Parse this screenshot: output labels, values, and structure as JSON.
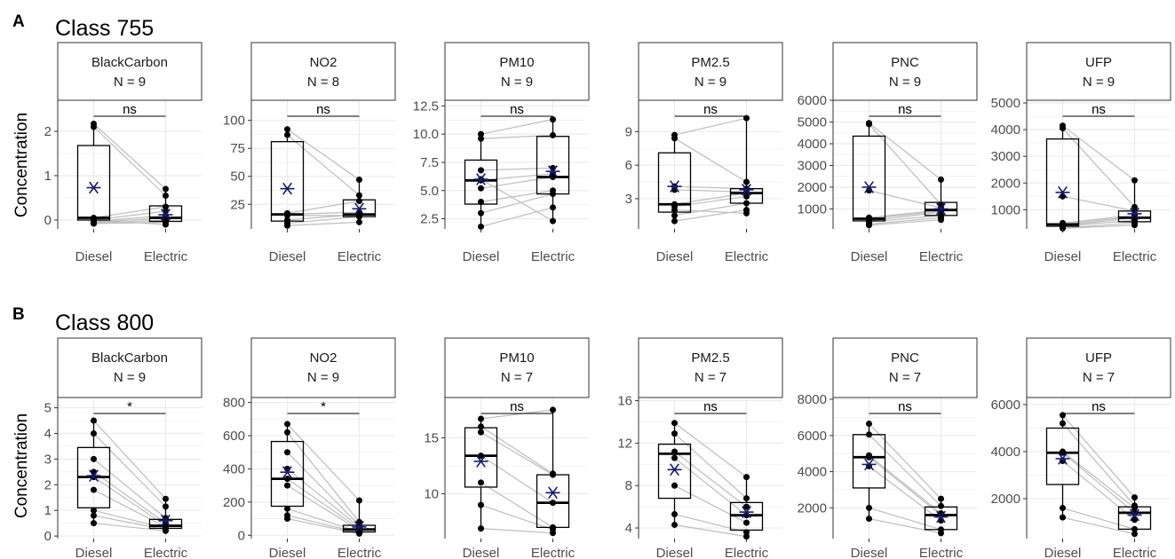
{
  "figure": {
    "y_axis_label": "Concentration",
    "mean_marker_color": "#191970",
    "point_color": "#000000",
    "paired_line_color": "#bdbdbd"
  },
  "chart_data": [
    {
      "tag": "A",
      "title": "Class 755",
      "type": "box-paired",
      "categories": [
        "Diesel",
        "Electric"
      ],
      "ylabel": "Concentration",
      "panels": [
        {
          "pollutant": "BlackCarbon",
          "n_label": "N = 9",
          "sig": "ns",
          "ylim": [
            -0.2,
            2.7
          ],
          "yticks": [
            0,
            1,
            2
          ],
          "diesel": {
            "q1": 0.0,
            "median": 0.05,
            "q3": 1.68,
            "whisker_low": -0.08,
            "whisker_high": 2.17,
            "mean": 0.73,
            "points": [
              2.17,
              2.1,
              0.05,
              0.0,
              -0.03,
              -0.05,
              -0.07,
              -0.08,
              0.0
            ]
          },
          "electric": {
            "q1": -0.03,
            "median": 0.05,
            "q3": 0.32,
            "whisker_low": -0.1,
            "whisker_high": 0.7,
            "mean": 0.12,
            "points": [
              0.7,
              0.55,
              0.3,
              0.2,
              0.1,
              0.05,
              0.0,
              -0.05,
              -0.1
            ]
          }
        },
        {
          "pollutant": "NO2",
          "n_label": "N = 8",
          "sig": "ns",
          "ylim": [
            3,
            118
          ],
          "yticks": [
            25,
            50,
            75,
            100
          ],
          "diesel": {
            "q1": 10,
            "median": 16,
            "q3": 81,
            "whisker_low": 6,
            "whisker_high": 92,
            "mean": 39,
            "points": [
              92,
              87,
              17,
              16,
              11,
              8,
              6,
              15
            ]
          },
          "electric": {
            "q1": 14,
            "median": 16,
            "q3": 29,
            "whisker_low": 9,
            "whisker_high": 47,
            "mean": 21,
            "points": [
              47,
              33,
              28,
              18,
              16,
              14,
              9,
              15
            ]
          }
        },
        {
          "pollutant": "PM10",
          "n_label": "N = 9",
          "sig": "ns",
          "ylim": [
            1.6,
            13.0
          ],
          "yticks": [
            2.5,
            5.0,
            7.5,
            10.0,
            12.5
          ],
          "diesel": {
            "q1": 3.8,
            "median": 5.9,
            "q3": 7.7,
            "whisker_low": 1.8,
            "whisker_high": 10.0,
            "mean": 6.0,
            "points": [
              10.0,
              9.6,
              6.8,
              5.9,
              5.2,
              4.0,
              3.0,
              1.8,
              6.0
            ]
          },
          "electric": {
            "q1": 4.7,
            "median": 6.2,
            "q3": 9.8,
            "whisker_low": 2.3,
            "whisker_high": 11.3,
            "mean": 6.7,
            "points": [
              11.3,
              9.9,
              7.0,
              6.5,
              6.2,
              5.0,
              4.7,
              3.5,
              2.3
            ]
          }
        },
        {
          "pollutant": "PM2.5",
          "n_label": "N = 9",
          "sig": "ns",
          "ylim": [
            0.3,
            11.8
          ],
          "yticks": [
            3,
            6,
            9
          ],
          "diesel": {
            "q1": 1.8,
            "median": 2.5,
            "q3": 7.1,
            "whisker_low": 1.0,
            "whisker_high": 8.7,
            "mean": 4.1,
            "points": [
              8.7,
              8.4,
              4.1,
              3.8,
              2.5,
              2.3,
              1.5,
              1.0,
              2.0
            ]
          },
          "electric": {
            "q1": 2.6,
            "median": 3.5,
            "q3": 3.9,
            "whisker_low": 1.7,
            "whisker_high": 10.2,
            "mean": 3.8,
            "points": [
              10.2,
              4.5,
              3.9,
              3.6,
              3.5,
              3.2,
              2.6,
              2.0,
              1.7
            ]
          }
        },
        {
          "pollutant": "PNC",
          "n_label": "N = 9",
          "sig": "ns",
          "ylim": [
            80,
            6000
          ],
          "yticks": [
            1000,
            2000,
            3000,
            4000,
            5000,
            6000
          ],
          "diesel": {
            "q1": 450,
            "median": 550,
            "q3": 4350,
            "whisker_low": 250,
            "whisker_high": 4950,
            "mean": 2000,
            "points": [
              4950,
              4900,
              1850,
              600,
              550,
              450,
              400,
              300,
              250
            ]
          },
          "electric": {
            "q1": 700,
            "median": 950,
            "q3": 1300,
            "whisker_low": 500,
            "whisker_high": 2350,
            "mean": 1000,
            "points": [
              2350,
              1200,
              1050,
              950,
              900,
              850,
              700,
              600,
              500
            ]
          }
        },
        {
          "pollutant": "UFP",
          "n_label": "N = 9",
          "sig": "ns",
          "ylim": [
            280,
            5100
          ],
          "yticks": [
            1000,
            2000,
            3000,
            4000,
            5000
          ],
          "diesel": {
            "q1": 380,
            "median": 450,
            "q3": 3650,
            "whisker_low": 300,
            "whisker_high": 4150,
            "mean": 1650,
            "points": [
              4150,
              4050,
              1500,
              500,
              450,
              400,
              380,
              320,
              300
            ]
          },
          "electric": {
            "q1": 550,
            "median": 700,
            "q3": 950,
            "whisker_low": 420,
            "whisker_high": 2100,
            "mean": 850,
            "points": [
              2100,
              1100,
              950,
              800,
              750,
              700,
              600,
              500,
              420
            ]
          }
        }
      ]
    },
    {
      "tag": "B",
      "title": "Class 800",
      "type": "box-paired",
      "categories": [
        "Diesel",
        "Electric"
      ],
      "ylabel": "Concentration",
      "panels": [
        {
          "pollutant": "BlackCarbon",
          "n_label": "N = 9",
          "sig": "*",
          "ylim": [
            -0.1,
            5.4
          ],
          "yticks": [
            0,
            1,
            2,
            3,
            4,
            5
          ],
          "diesel": {
            "q1": 1.1,
            "median": 2.3,
            "q3": 3.45,
            "whisker_low": 0.5,
            "whisker_high": 4.5,
            "mean": 2.35,
            "points": [
              4.5,
              4.0,
              3.0,
              2.5,
              2.3,
              1.8,
              1.0,
              0.8,
              0.5
            ]
          },
          "electric": {
            "q1": 0.3,
            "median": 0.4,
            "q3": 0.65,
            "whisker_low": 0.2,
            "whisker_high": 1.45,
            "mean": 0.6,
            "points": [
              1.45,
              1.15,
              0.7,
              0.5,
              0.4,
              0.35,
              0.3,
              0.25,
              0.2
            ]
          }
        },
        {
          "pollutant": "NO2",
          "n_label": "N = 9",
          "sig": "*",
          "ylim": [
            -20,
            830
          ],
          "yticks": [
            0,
            200,
            400,
            600,
            800
          ],
          "diesel": {
            "q1": 175,
            "median": 340,
            "q3": 565,
            "whisker_low": 100,
            "whisker_high": 670,
            "mean": 380,
            "points": [
              670,
              620,
              500,
              400,
              340,
              300,
              160,
              120,
              100
            ]
          },
          "electric": {
            "q1": 20,
            "median": 35,
            "q3": 60,
            "whisker_low": 10,
            "whisker_high": 210,
            "mean": 50,
            "points": [
              210,
              80,
              60,
              50,
              40,
              30,
              20,
              15,
              10
            ]
          }
        },
        {
          "pollutant": "PM10",
          "n_label": "N = 7",
          "sig": "ns",
          "ylim": [
            6.0,
            18.6
          ],
          "yticks": [
            10,
            15
          ],
          "diesel": {
            "q1": 10.6,
            "median": 13.4,
            "q3": 15.9,
            "whisker_low": 6.9,
            "whisker_high": 16.7,
            "mean": 12.9,
            "points": [
              16.7,
              16.0,
              15.5,
              13.4,
              11.0,
              9.0,
              6.9
            ]
          },
          "electric": {
            "q1": 7.0,
            "median": 9.2,
            "q3": 11.7,
            "whisker_low": 6.5,
            "whisker_high": 17.5,
            "mean": 10.1,
            "points": [
              17.5,
              11.8,
              11.7,
              9.2,
              7.0,
              6.8,
              6.5
            ]
          }
        },
        {
          "pollutant": "PM2.5",
          "n_label": "N = 7",
          "sig": "ns",
          "ylim": [
            3.0,
            16.3
          ],
          "yticks": [
            4,
            8,
            12,
            16
          ],
          "diesel": {
            "q1": 6.8,
            "median": 11.0,
            "q3": 11.9,
            "whisker_low": 4.3,
            "whisker_high": 13.9,
            "mean": 9.5,
            "points": [
              13.9,
              12.9,
              11.2,
              10.6,
              8.0,
              5.3,
              4.3
            ]
          },
          "electric": {
            "q1": 3.8,
            "median": 5.2,
            "q3": 6.4,
            "whisker_low": 3.2,
            "whisker_high": 8.8,
            "mean": 5.5,
            "points": [
              8.8,
              6.8,
              6.0,
              5.2,
              4.5,
              3.6,
              3.2
            ]
          }
        },
        {
          "pollutant": "PNC",
          "n_label": "N = 7",
          "sig": "ns",
          "ylim": [
            300,
            8100
          ],
          "yticks": [
            2000,
            4000,
            6000,
            8000
          ],
          "diesel": {
            "q1": 3100,
            "median": 4800,
            "q3": 6050,
            "whisker_low": 1400,
            "whisker_high": 6650,
            "mean": 4400,
            "points": [
              6650,
              6050,
              4900,
              4800,
              4300,
              2000,
              1400
            ]
          },
          "electric": {
            "q1": 800,
            "median": 1600,
            "q3": 2050,
            "whisker_low": 600,
            "whisker_high": 2500,
            "mean": 1500,
            "points": [
              2500,
              2100,
              1700,
              1600,
              1300,
              800,
              600
            ]
          }
        },
        {
          "pollutant": "UFP",
          "n_label": "N = 7",
          "sig": "ns",
          "ylim": [
            300,
            6300
          ],
          "yticks": [
            2000,
            4000,
            6000
          ],
          "diesel": {
            "q1": 2600,
            "median": 3950,
            "q3": 5000,
            "whisker_low": 1200,
            "whisker_high": 5550,
            "mean": 3700,
            "points": [
              5550,
              5200,
              4000,
              3950,
              3600,
              1600,
              1200
            ]
          },
          "electric": {
            "q1": 700,
            "median": 1400,
            "q3": 1650,
            "whisker_low": 500,
            "whisker_high": 2050,
            "mean": 1300,
            "points": [
              2050,
              1700,
              1600,
              1400,
              1100,
              700,
              500
            ]
          }
        }
      ]
    }
  ]
}
